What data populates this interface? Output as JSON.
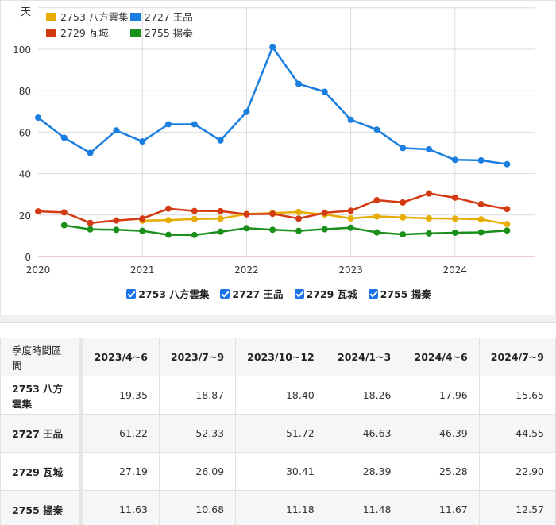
{
  "chart_data": {
    "type": "line",
    "title": "",
    "ylabel": "天",
    "xlabel": "",
    "ylim": [
      0,
      120
    ],
    "yticks": [
      0,
      20,
      40,
      60,
      80,
      100
    ],
    "xticks": [
      "2020",
      "2021",
      "2022",
      "2023",
      "2024"
    ],
    "grid": true,
    "legend_position": "top-left",
    "x": [
      "2020Q1",
      "2020Q2",
      "2020Q3",
      "2020Q4",
      "2021Q1",
      "2021Q2",
      "2021Q3",
      "2021Q4",
      "2022Q1",
      "2022Q2",
      "2022Q3",
      "2022Q4",
      "2023Q1",
      "2023Q2",
      "2023Q3",
      "2023Q4",
      "2024Q1",
      "2024Q2",
      "2024Q3"
    ],
    "series": [
      {
        "name": "2753 八方雲集",
        "color": "#e6ac00",
        "values": [
          null,
          null,
          null,
          null,
          17.3,
          17.5,
          18.1,
          18.3,
          20.5,
          21.0,
          21.5,
          20.3,
          18.4,
          19.35,
          18.87,
          18.4,
          18.26,
          17.96,
          15.65
        ]
      },
      {
        "name": "2727 王品",
        "color": "#1a7ee0",
        "values": [
          67.0,
          57.3,
          50.0,
          60.8,
          55.5,
          63.8,
          63.8,
          56.0,
          69.8,
          101.0,
          83.3,
          79.5,
          66.0,
          61.22,
          52.33,
          51.72,
          46.63,
          46.39,
          44.55
        ]
      },
      {
        "name": "2729 瓦城",
        "color": "#d43a12",
        "values": [
          21.8,
          21.3,
          16.2,
          17.4,
          18.3,
          23.1,
          22.0,
          21.9,
          20.4,
          20.6,
          18.3,
          21.1,
          22.1,
          27.19,
          26.09,
          30.41,
          28.39,
          25.28,
          22.9
        ]
      },
      {
        "name": "2755 揚秦",
        "color": "#1a8f1a",
        "values": [
          null,
          15.1,
          13.1,
          12.9,
          12.4,
          10.5,
          10.4,
          12.0,
          13.7,
          12.9,
          12.4,
          13.2,
          13.9,
          11.63,
          10.68,
          11.18,
          11.48,
          11.67,
          12.57
        ]
      }
    ]
  },
  "legend": {
    "items": [
      {
        "label": "2753 八方雲集",
        "color": "#e6ac00"
      },
      {
        "label": "2727 王品",
        "color": "#1a7ee0"
      },
      {
        "label": "2729 瓦城",
        "color": "#d43a12"
      },
      {
        "label": "2755 揚秦",
        "color": "#1a8f1a"
      }
    ]
  },
  "toggles": [
    {
      "label": "2753 八方雲集",
      "checked": true
    },
    {
      "label": "2727 王品",
      "checked": true
    },
    {
      "label": "2729 瓦城",
      "checked": true
    },
    {
      "label": "2755 揚秦",
      "checked": true
    }
  ],
  "table": {
    "corner": "季度時間區間",
    "columns": [
      "2023/4~6",
      "2023/7~9",
      "2023/10~12",
      "2024/1~3",
      "2024/4~6",
      "2024/7~9"
    ],
    "rows": [
      {
        "name": "2753 八方雲集",
        "cells": [
          "19.35",
          "18.87",
          "18.40",
          "18.26",
          "17.96",
          "15.65"
        ]
      },
      {
        "name": "2727 王品",
        "cells": [
          "61.22",
          "52.33",
          "51.72",
          "46.63",
          "46.39",
          "44.55"
        ]
      },
      {
        "name": "2729 瓦城",
        "cells": [
          "27.19",
          "26.09",
          "30.41",
          "28.39",
          "25.28",
          "22.90"
        ]
      },
      {
        "name": "2755 揚秦",
        "cells": [
          "11.63",
          "10.68",
          "11.18",
          "11.48",
          "11.67",
          "12.57"
        ]
      }
    ]
  }
}
